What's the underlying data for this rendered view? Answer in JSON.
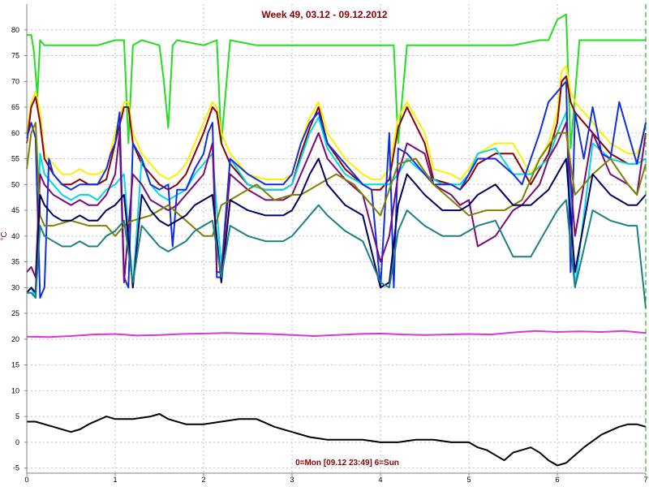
{
  "chart_data": {
    "type": "line",
    "title": "Week 49, 03.12 - 09.12.2012",
    "ylabel": "°C",
    "xlabel": "",
    "footnote": "0=Mon [09.12 23:49] 6=Sun",
    "xlim": [
      0,
      7
    ],
    "ylim": [
      -6,
      85
    ],
    "x_ticks": [
      "0",
      "1",
      "2",
      "3",
      "4",
      "5",
      "6",
      "7"
    ],
    "y_ticks": [
      "-5",
      "0",
      "5",
      "10",
      "15",
      "20",
      "25",
      "30",
      "35",
      "40",
      "45",
      "50",
      "55",
      "60",
      "65",
      "70",
      "75",
      "80"
    ],
    "grid": true,
    "series": [
      {
        "color": "#22dd22",
        "x": [
          0,
          0.05,
          0.08,
          0.12,
          0.15,
          0.2,
          0.4,
          0.8,
          1.0,
          1.1,
          1.15,
          1.2,
          1.3,
          1.5,
          1.55,
          1.6,
          1.65,
          1.7,
          2.0,
          2.15,
          2.2,
          2.3,
          2.6,
          2.9,
          3.0,
          3.3,
          3.6,
          3.9,
          4.05,
          4.15,
          4.2,
          4.3,
          4.6,
          4.9,
          5.2,
          5.5,
          5.8,
          5.9,
          6.0,
          6.1,
          6.15,
          6.25,
          6.6,
          6.9,
          7.0
        ],
        "values": [
          79,
          79,
          76,
          67,
          78,
          77,
          77,
          77,
          78,
          78,
          58,
          77,
          78,
          77,
          70,
          61,
          77,
          78,
          77,
          78,
          58,
          78,
          77,
          77,
          77,
          77,
          77,
          77,
          77,
          77,
          58,
          77,
          77,
          77,
          77,
          77,
          78,
          78,
          82,
          83,
          57,
          78,
          78,
          78,
          78
        ]
      },
      {
        "color": "#ffee00",
        "x": [
          0,
          0.05,
          0.1,
          0.15,
          0.2,
          0.3,
          0.4,
          0.5,
          0.6,
          0.7,
          0.8,
          0.9,
          1.0,
          1.1,
          1.15,
          1.2,
          1.3,
          1.4,
          1.5,
          1.6,
          1.7,
          1.8,
          1.9,
          2.0,
          2.1,
          2.15,
          2.2,
          2.3,
          2.5,
          2.7,
          2.9,
          3.0,
          3.1,
          3.2,
          3.3,
          3.4,
          3.6,
          3.8,
          3.9,
          4.0,
          4.1,
          4.2,
          4.3,
          4.5,
          4.6,
          4.8,
          4.9,
          5.0,
          5.1,
          5.3,
          5.5,
          5.7,
          5.9,
          6.0,
          6.05,
          6.1,
          6.15,
          6.2,
          6.4,
          6.6,
          6.8,
          6.9,
          7.0
        ],
        "values": [
          60,
          66,
          68,
          64,
          56,
          54,
          52,
          52,
          53,
          52,
          52,
          53,
          60,
          66,
          66,
          60,
          56,
          54,
          52,
          51,
          52,
          54,
          58,
          62,
          66,
          65,
          60,
          56,
          52,
          51,
          51,
          52,
          58,
          63,
          66,
          60,
          55,
          52,
          51,
          51,
          53,
          63,
          66,
          60,
          53,
          52,
          51,
          53,
          56,
          58,
          58,
          52,
          58,
          64,
          72,
          73,
          68,
          66,
          62,
          58,
          56,
          56,
          60
        ]
      },
      {
        "color": "#8b0000",
        "x": [
          0,
          0.05,
          0.1,
          0.15,
          0.2,
          0.3,
          0.4,
          0.5,
          0.6,
          0.7,
          0.8,
          0.9,
          1.0,
          1.1,
          1.15,
          1.2,
          1.3,
          1.4,
          1.5,
          1.6,
          1.7,
          1.8,
          1.9,
          2.0,
          2.1,
          2.15,
          2.2,
          2.3,
          2.5,
          2.7,
          2.9,
          3.0,
          3.1,
          3.2,
          3.3,
          3.4,
          3.6,
          3.8,
          3.9,
          4.0,
          4.1,
          4.2,
          4.3,
          4.5,
          4.6,
          4.8,
          4.9,
          5.0,
          5.1,
          5.3,
          5.5,
          5.7,
          5.9,
          6.0,
          6.05,
          6.1,
          6.15,
          6.2,
          6.4,
          6.6,
          6.8,
          6.9,
          7.0
        ],
        "values": [
          58,
          65,
          67,
          62,
          55,
          52,
          50,
          50,
          51,
          50,
          50,
          51,
          58,
          65,
          65,
          58,
          54,
          52,
          50,
          49,
          50,
          52,
          56,
          60,
          65,
          64,
          58,
          54,
          50,
          49,
          49,
          50,
          56,
          61,
          65,
          58,
          53,
          50,
          49,
          49,
          51,
          61,
          65,
          58,
          51,
          50,
          49,
          51,
          54,
          56,
          56,
          50,
          56,
          62,
          70,
          71,
          66,
          64,
          60,
          56,
          54,
          54,
          62
        ]
      },
      {
        "color": "#00d8e8",
        "x": [
          0,
          0.05,
          0.1,
          0.15,
          0.2,
          0.3,
          0.4,
          0.5,
          0.6,
          0.7,
          0.8,
          0.9,
          1.0,
          1.1,
          1.2,
          1.3,
          1.4,
          1.5,
          1.6,
          1.7,
          1.8,
          1.9,
          2.0,
          2.1,
          2.2,
          2.3,
          2.5,
          2.7,
          2.9,
          3.0,
          3.1,
          3.2,
          3.3,
          3.4,
          3.6,
          3.8,
          4.0,
          4.1,
          4.2,
          4.3,
          4.5,
          4.7,
          4.9,
          5.0,
          5.1,
          5.3,
          5.5,
          5.7,
          5.9,
          6.0,
          6.1,
          6.2,
          6.4,
          6.6,
          6.8,
          6.9,
          7.0
        ],
        "values": [
          29,
          30,
          28,
          56,
          52,
          50,
          48,
          47,
          48,
          48,
          47,
          49,
          50,
          52,
          30,
          55,
          50,
          48,
          47,
          48,
          49,
          52,
          54,
          56,
          34,
          55,
          50,
          49,
          49,
          50,
          55,
          60,
          63,
          57,
          52,
          50,
          50,
          50,
          52,
          55,
          52,
          50,
          50,
          52,
          56,
          57,
          52,
          52,
          55,
          60,
          64,
          30,
          58,
          55,
          54,
          54,
          55
        ]
      },
      {
        "color": "#1030e0",
        "x": [
          0,
          0.05,
          0.1,
          0.15,
          0.2,
          0.25,
          0.3,
          0.4,
          0.5,
          0.6,
          0.7,
          0.8,
          0.9,
          0.95,
          1.0,
          1.05,
          1.1,
          1.15,
          1.2,
          1.3,
          1.4,
          1.5,
          1.6,
          1.65,
          1.7,
          1.8,
          1.9,
          2.0,
          2.05,
          2.1,
          2.15,
          2.2,
          2.3,
          2.5,
          2.7,
          2.9,
          3.0,
          3.1,
          3.2,
          3.3,
          3.4,
          3.6,
          3.8,
          3.9,
          4.0,
          4.1,
          4.15,
          4.2,
          4.3,
          4.5,
          4.6,
          4.8,
          4.9,
          5.0,
          5.1,
          5.3,
          5.5,
          5.6,
          5.7,
          5.8,
          5.9,
          6.0,
          6.1,
          6.15,
          6.2,
          6.3,
          6.4,
          6.5,
          6.6,
          6.7,
          6.8,
          6.9,
          7.0
        ],
        "values": [
          59,
          62,
          59,
          28,
          30,
          55,
          52,
          50,
          49,
          50,
          50,
          50,
          53,
          56,
          58,
          64,
          32,
          30,
          58,
          55,
          50,
          49,
          50,
          38,
          49,
          49,
          53,
          56,
          60,
          62,
          32,
          32,
          55,
          52,
          50,
          50,
          52,
          58,
          62,
          64,
          58,
          54,
          50,
          49,
          30,
          60,
          30,
          57,
          56,
          52,
          50,
          50,
          49,
          52,
          55,
          55,
          52,
          50,
          55,
          60,
          66,
          68,
          70,
          33,
          64,
          55,
          65,
          56,
          55,
          66,
          60,
          54,
          62
        ]
      },
      {
        "color": "#7a0a7a",
        "x": [
          0,
          0.05,
          0.1,
          0.15,
          0.2,
          0.3,
          0.4,
          0.5,
          0.6,
          0.7,
          0.8,
          0.9,
          1.0,
          1.05,
          1.1,
          1.2,
          1.3,
          1.4,
          1.5,
          1.6,
          1.7,
          1.8,
          1.9,
          2.0,
          2.1,
          2.15,
          2.2,
          2.3,
          2.5,
          2.7,
          2.9,
          3.0,
          3.1,
          3.2,
          3.3,
          3.4,
          3.6,
          3.8,
          4.0,
          4.1,
          4.2,
          4.3,
          4.5,
          4.6,
          4.8,
          4.9,
          5.0,
          5.1,
          5.3,
          5.5,
          5.6,
          5.8,
          5.9,
          6.0,
          6.1,
          6.2,
          6.4,
          6.6,
          6.8,
          6.9,
          7.0
        ],
        "values": [
          33,
          34,
          32,
          52,
          50,
          48,
          47,
          46,
          47,
          46,
          46,
          48,
          52,
          60,
          31,
          52,
          50,
          47,
          46,
          45,
          46,
          48,
          50,
          52,
          58,
          33,
          33,
          52,
          49,
          47,
          47,
          48,
          52,
          56,
          60,
          55,
          51,
          48,
          35,
          40,
          52,
          58,
          56,
          50,
          48,
          46,
          47,
          38,
          40,
          45,
          46,
          50,
          55,
          58,
          62,
          40,
          60,
          52,
          50,
          48,
          60
        ]
      },
      {
        "color": "#808000",
        "x": [
          0,
          0.05,
          0.1,
          0.15,
          0.2,
          0.3,
          0.5,
          0.7,
          0.9,
          1.0,
          1.1,
          1.2,
          1.4,
          1.6,
          1.8,
          2.0,
          2.1,
          2.2,
          2.4,
          2.6,
          2.8,
          3.0,
          3.1,
          3.3,
          3.5,
          3.7,
          3.9,
          4.0,
          4.2,
          4.4,
          4.6,
          4.8,
          5.0,
          5.2,
          5.4,
          5.6,
          5.8,
          6.0,
          6.1,
          6.2,
          6.4,
          6.6,
          6.8,
          6.9,
          7.0
        ],
        "values": [
          53,
          60,
          62,
          44,
          42,
          42,
          43,
          42,
          42,
          40,
          42,
          43,
          44,
          46,
          43,
          40,
          40,
          46,
          48,
          50,
          47,
          48,
          48,
          50,
          52,
          50,
          46,
          44,
          54,
          55,
          50,
          47,
          44,
          45,
          45,
          47,
          55,
          60,
          60,
          48,
          52,
          55,
          50,
          48,
          54
        ]
      },
      {
        "color": "#000060",
        "x": [
          0,
          0.05,
          0.1,
          0.15,
          0.2,
          0.3,
          0.4,
          0.5,
          0.6,
          0.7,
          0.8,
          0.9,
          1.0,
          1.1,
          1.2,
          1.3,
          1.4,
          1.5,
          1.6,
          1.7,
          1.8,
          1.9,
          2.0,
          2.1,
          2.2,
          2.3,
          2.5,
          2.7,
          2.9,
          3.0,
          3.1,
          3.2,
          3.3,
          3.4,
          3.6,
          3.8,
          4.0,
          4.1,
          4.2,
          4.3,
          4.5,
          4.7,
          4.9,
          5.0,
          5.1,
          5.3,
          5.5,
          5.7,
          5.9,
          6.0,
          6.1,
          6.2,
          6.4,
          6.6,
          6.8,
          6.9,
          7.0
        ],
        "values": [
          29,
          30,
          29,
          48,
          46,
          44,
          43,
          43,
          44,
          43,
          43,
          45,
          46,
          48,
          30,
          48,
          45,
          43,
          42,
          43,
          44,
          46,
          47,
          48,
          31,
          47,
          45,
          44,
          44,
          45,
          48,
          52,
          55,
          50,
          46,
          44,
          30,
          31,
          46,
          52,
          48,
          45,
          45,
          46,
          48,
          50,
          46,
          46,
          49,
          52,
          55,
          33,
          52,
          48,
          46,
          46,
          48
        ]
      },
      {
        "color": "#1a8080",
        "x": [
          0,
          0.05,
          0.1,
          0.15,
          0.2,
          0.3,
          0.4,
          0.5,
          0.6,
          0.7,
          0.8,
          0.9,
          1.0,
          1.1,
          1.2,
          1.3,
          1.4,
          1.5,
          1.6,
          1.7,
          1.8,
          1.9,
          2.0,
          2.1,
          2.2,
          2.3,
          2.5,
          2.7,
          2.9,
          3.0,
          3.1,
          3.2,
          3.3,
          3.4,
          3.6,
          3.8,
          4.0,
          4.1,
          4.2,
          4.3,
          4.5,
          4.7,
          4.9,
          5.0,
          5.1,
          5.3,
          5.5,
          5.7,
          5.9,
          6.0,
          6.1,
          6.2,
          6.4,
          6.6,
          6.8,
          6.9,
          7.0
        ],
        "values": [
          29,
          29,
          28,
          42,
          40,
          39,
          38,
          38,
          39,
          38,
          38,
          40,
          41,
          43,
          31,
          42,
          40,
          38,
          37,
          38,
          39,
          41,
          42,
          43,
          32,
          42,
          40,
          39,
          39,
          40,
          42,
          44,
          46,
          44,
          41,
          39,
          31,
          30,
          41,
          45,
          42,
          40,
          40,
          41,
          42,
          43,
          36,
          36,
          42,
          45,
          47,
          30,
          45,
          43,
          42,
          42,
          26
        ]
      },
      {
        "color": "#dd33dd",
        "x": [
          0,
          0.25,
          0.5,
          0.75,
          1.0,
          1.25,
          1.5,
          1.75,
          2.0,
          2.25,
          2.5,
          2.75,
          3.0,
          3.25,
          3.5,
          3.75,
          4.0,
          4.25,
          4.5,
          4.75,
          5.0,
          5.25,
          5.5,
          5.75,
          6.0,
          6.25,
          6.5,
          6.75,
          7.0
        ],
        "values": [
          20.5,
          20.4,
          20.6,
          20.9,
          21.0,
          20.7,
          20.8,
          21.0,
          21.1,
          21.2,
          21.1,
          21.0,
          20.8,
          20.6,
          20.8,
          21.0,
          21.1,
          20.9,
          20.8,
          20.9,
          21.0,
          20.9,
          21.3,
          21.6,
          21.4,
          21.5,
          21.4,
          21.6,
          21.2
        ]
      },
      {
        "color": "#000000",
        "x": [
          0,
          0.1,
          0.2,
          0.3,
          0.5,
          0.6,
          0.7,
          0.9,
          1.0,
          1.2,
          1.4,
          1.5,
          1.6,
          1.8,
          2.0,
          2.2,
          2.4,
          2.6,
          2.8,
          3.0,
          3.2,
          3.4,
          3.6,
          3.8,
          4.0,
          4.2,
          4.4,
          4.6,
          4.8,
          5.0,
          5.1,
          5.2,
          5.3,
          5.4,
          5.5,
          5.7,
          5.8,
          5.9,
          6.0,
          6.1,
          6.2,
          6.3,
          6.5,
          6.7,
          6.8,
          6.9,
          7.0
        ],
        "values": [
          4,
          4,
          3.5,
          3,
          2,
          2.5,
          3.5,
          5,
          4.5,
          4.5,
          5,
          5.5,
          4.5,
          3.5,
          3.5,
          4,
          4.5,
          4.5,
          3,
          2,
          1,
          0.5,
          0.5,
          0.5,
          0,
          0,
          0.5,
          0.5,
          0,
          0,
          -1,
          -1.5,
          -2.5,
          -3.5,
          -2,
          -1,
          -2,
          -3.5,
          -4.5,
          -4,
          -2.5,
          -1,
          1.5,
          3,
          3.5,
          3.5,
          3
        ]
      }
    ]
  }
}
